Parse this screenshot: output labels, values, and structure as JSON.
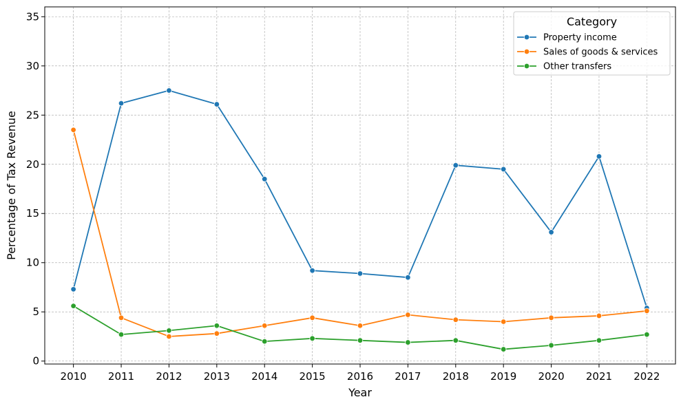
{
  "chart_data": {
    "type": "line",
    "xlabel": "Year",
    "ylabel": "Percentage of Tax Revenue",
    "x": [
      2010,
      2011,
      2012,
      2013,
      2014,
      2015,
      2016,
      2017,
      2018,
      2019,
      2020,
      2021,
      2022
    ],
    "ylim": [
      -0.3,
      36
    ],
    "yticks": [
      0,
      5,
      10,
      15,
      20,
      25,
      30,
      35
    ],
    "grid": true,
    "legend": {
      "title": "Category",
      "placement": "top-right"
    },
    "series": [
      {
        "name": "Property income",
        "color": "#1f77b4",
        "values": [
          7.3,
          26.2,
          27.5,
          26.1,
          18.5,
          9.2,
          8.9,
          8.5,
          19.9,
          19.5,
          13.1,
          20.8,
          5.4
        ]
      },
      {
        "name": "Sales of goods & services",
        "color": "#ff7f0e",
        "values": [
          23.5,
          4.4,
          2.5,
          2.8,
          3.6,
          4.4,
          3.6,
          4.7,
          4.2,
          4.0,
          4.4,
          4.6,
          5.1
        ]
      },
      {
        "name": "Other transfers",
        "color": "#2ca02c",
        "values": [
          5.6,
          2.7,
          3.1,
          3.6,
          2.0,
          2.3,
          2.1,
          1.9,
          2.1,
          1.2,
          1.6,
          2.1,
          2.7
        ]
      }
    ]
  }
}
